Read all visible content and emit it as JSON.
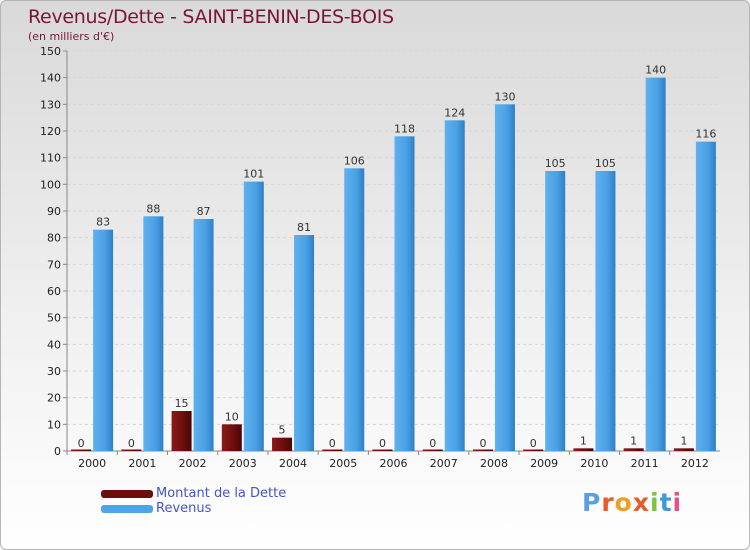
{
  "title": "Revenus/Dette - SAINT-BENIN-DES-BOIS",
  "subtitle": "(en milliers d'€)",
  "logo_text": "Proxiti",
  "colors": {
    "dette": "#6b0d0d",
    "revenus": "#4ea3e6",
    "title": "#7a1537",
    "legend_text": "#4355c8",
    "logo": [
      "#5aa0e0",
      "#e85c2a",
      "#f0a020",
      "#e85c2a",
      "#7fc242",
      "#3f9ad6",
      "#e84f8a"
    ]
  },
  "chart_data": {
    "type": "bar",
    "title": "Revenus/Dette - SAINT-BENIN-DES-BOIS",
    "ylabel": "(en milliers d'€)",
    "categories": [
      "2000",
      "2001",
      "2002",
      "2003",
      "2004",
      "2005",
      "2006",
      "2007",
      "2008",
      "2009",
      "2010",
      "2011",
      "2012"
    ],
    "series": [
      {
        "name": "Montant de la Dette",
        "values": [
          0,
          0,
          15,
          10,
          5,
          0,
          0,
          0,
          0,
          0,
          1,
          1,
          1
        ]
      },
      {
        "name": "Revenus",
        "values": [
          83,
          88,
          87,
          101,
          81,
          106,
          118,
          124,
          130,
          105,
          105,
          140,
          116
        ]
      }
    ],
    "ylim": [
      0,
      150
    ],
    "yticks": [
      "0",
      "10",
      "20",
      "30",
      "40",
      "50",
      "60",
      "70",
      "80",
      "90",
      "100",
      "110",
      "120",
      "130",
      "140",
      "150"
    ],
    "grid": true,
    "legend_position": "bottom-left"
  }
}
